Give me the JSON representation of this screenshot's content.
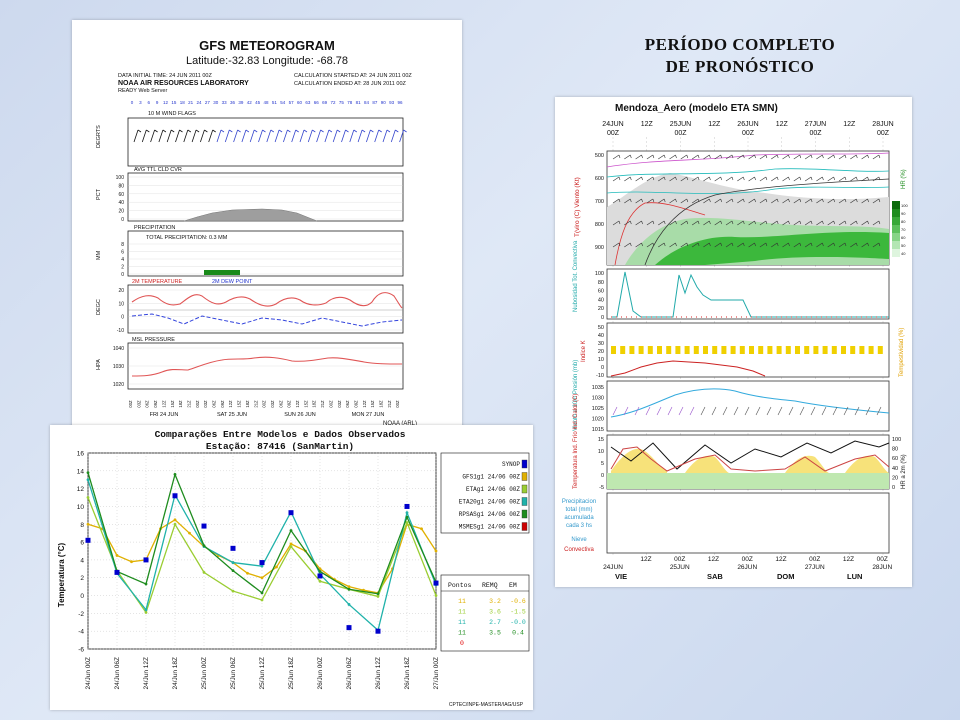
{
  "heading": {
    "line1": "PERÍODO COMPLETO",
    "line2": "DE PRONÓSTICO"
  },
  "gfs": {
    "title": "GFS METEOROGRAM",
    "latlon": "Latitude:-32.83 Longitude: -68.78",
    "initial": "DATA INITIAL TIME: 24 JUN 2011 00Z",
    "lab": "NOAA AIR RESOURCES LABORATORY",
    "server": "READY Web Server",
    "calc_start": "CALCULATION STARTED AT: 24 JUN 2011 00Z",
    "calc_end": "CALCULATION ENDED AT: 28 JUN 2011 00Z",
    "hours": [
      "0",
      "3",
      "6",
      "9",
      "12",
      "15",
      "18",
      "21",
      "24",
      "27",
      "30",
      "33",
      "36",
      "39",
      "42",
      "45",
      "48",
      "51",
      "54",
      "57",
      "60",
      "63",
      "66",
      "69",
      "72",
      "75",
      "78",
      "81",
      "84",
      "87",
      "90",
      "93",
      "96"
    ],
    "wind_label": "10 M WIND FLAGS",
    "wind_unit": "DEGRTS",
    "cloud_label": "AVG TTL CLD CVR",
    "cloud_unit": "PCT",
    "precip_label": "PRECIPITATION",
    "precip_total": "TOTAL PRECIPITATION:  0.3 MM",
    "precip_unit": "MM",
    "temp_label": "2M TEMPERATURE",
    "dew_label": "2M DEW POINT",
    "temp_unit": "DEGC",
    "mslp_label": "MSL PRESSURE",
    "mslp_unit": "HPA",
    "days": [
      "FRI 24 JUN",
      "SAT 25 JUN",
      "SUN 26 JUN",
      "MON 27 JUN"
    ],
    "footer": "NOAA (ARL)",
    "cloud_ticks": [
      "100",
      "80",
      "60",
      "40",
      "20",
      "0"
    ],
    "precip_ticks": [
      "8",
      "6",
      "4",
      "2",
      "0"
    ],
    "temp_ticks": [
      "20",
      "10",
      "0",
      "-10"
    ],
    "mslp_ticks": [
      "1040",
      "1030",
      "1020"
    ],
    "time_ticks": [
      "00Z",
      "03Z",
      "06Z",
      "09Z",
      "12Z",
      "15Z",
      "18Z",
      "21Z"
    ]
  },
  "eta": {
    "title": "Mendoza_Aero (modelo ETA SMN)",
    "top_dates": [
      [
        "24JUN",
        "00Z"
      ],
      [
        "12Z",
        ""
      ],
      [
        "25JUN",
        "00Z"
      ],
      [
        "12Z",
        ""
      ],
      [
        "26JUN",
        "00Z"
      ],
      [
        "12Z",
        ""
      ],
      [
        "27JUN",
        "00Z"
      ],
      [
        "12Z",
        ""
      ],
      [
        "28JUN",
        "00Z"
      ]
    ],
    "bottom_dates": [
      [
        "12Z",
        ""
      ],
      [
        "00Z",
        "25JUN"
      ],
      [
        "12Z",
        ""
      ],
      [
        "00Z",
        "26JUN"
      ],
      [
        "12Z",
        ""
      ],
      [
        "00Z",
        "27JUN"
      ],
      [
        "12Z",
        ""
      ],
      [
        "00Z",
        "28JUN"
      ]
    ],
    "bottom_start": "24JUN",
    "days": [
      "VIE",
      "SAB",
      "DOM",
      "LUN"
    ],
    "p1_label": "T(viro (C) Viento (Kt)",
    "p1_ticks": [
      "500",
      "600",
      "700",
      "800",
      "900"
    ],
    "hr_label": "HR (%)",
    "hr_ticks": [
      "100",
      "90",
      "80",
      "70",
      "60",
      "50",
      "40"
    ],
    "p2_label": "Nubosidad Tot. Convectiva",
    "p2_ticks": [
      "100",
      "80",
      "60",
      "40",
      "20",
      "0"
    ],
    "p3_label": "Indice K",
    "p3_right": "Tempestividad (%)",
    "p3_ticks": [
      "50",
      "40",
      "30",
      "20",
      "10",
      "0",
      "-10"
    ],
    "p4_label": "Viento a 10m Presión (mb)",
    "p4_ticks": [
      "1035",
      "1030",
      "1025",
      "1020",
      "1015"
    ],
    "p5_label": "Temperatura Ind. Frío Ind. Calor (C)",
    "p5_right": "HR a 2m (%)",
    "p5_ticks": [
      "15",
      "10",
      "5",
      "0",
      "-5"
    ],
    "p5_right_ticks": [
      "100",
      "80",
      "60",
      "40",
      "20",
      "0"
    ],
    "legend": [
      "Precipitacion",
      "total (mm)",
      "acumulada",
      "cada 3 hs"
    ],
    "legend_nieve": "Nieve",
    "legend_conv": "Convectiva",
    "contour_labels": [
      "30",
      "20",
      "10",
      "-10",
      "-15",
      "-5",
      "-20",
      "15"
    ]
  },
  "comparison": {
    "title": "Comparações Entre Modelos e Dados Observados",
    "station": "Estação: 87416 (SanMartin)",
    "ylabel": "Temperatura (°C)",
    "credit": "CPTEC/INPE-MASTER/IAG/USP",
    "table_headers": [
      "Pontos",
      "REMQ",
      "EM"
    ],
    "table_rows": [
      {
        "pontos": "11",
        "remq": "3.2",
        "em": "-0.6",
        "color": "#e0b000"
      },
      {
        "pontos": "11",
        "remq": "3.6",
        "em": "-1.5",
        "color": "#9acd32"
      },
      {
        "pontos": "11",
        "remq": "2.7",
        "em": "-0.0",
        "color": "#20b2aa"
      },
      {
        "pontos": "11",
        "remq": "3.5",
        "em": "0.4",
        "color": "#1e8c1e"
      },
      {
        "pontos": "0",
        "remq": "",
        "em": "",
        "color": "#e00000"
      }
    ]
  },
  "chart_data": {
    "type": "line",
    "title": "Comparações Entre Modelos e Dados Observados",
    "subtitle": "Estação: 87416 (SanMartin)",
    "xlabel": "",
    "ylabel": "Temperatura (°C)",
    "ylim": [
      -6,
      16
    ],
    "yticks": [
      -6,
      -4,
      -2,
      0,
      2,
      4,
      6,
      8,
      10,
      12,
      14,
      16
    ],
    "grid": true,
    "legend_position": "right",
    "categories": [
      "24/Jun 00Z",
      "24/Jun 06Z",
      "24/Jun 12Z",
      "24/Jun 18Z",
      "25/Jun 00Z",
      "25/Jun 06Z",
      "25/Jun 12Z",
      "25/Jun 18Z",
      "26/Jun 00Z",
      "26/Jun 06Z",
      "26/Jun 12Z",
      "26/Jun 18Z",
      "27/Jun 00Z"
    ],
    "x_positions": [
      0,
      3,
      6,
      9,
      12,
      15,
      18,
      21,
      24,
      27,
      30,
      33,
      36
    ],
    "series": [
      {
        "name": "SYNOP",
        "color": "#0000cc",
        "kind": "marker",
        "points": [
          [
            0,
            6.2
          ],
          [
            3,
            2.6
          ],
          [
            6,
            4.0
          ],
          [
            9,
            11.2
          ],
          [
            12,
            7.8
          ],
          [
            15,
            5.3
          ],
          [
            18,
            3.7
          ],
          [
            21,
            9.3
          ],
          [
            24,
            2.2
          ],
          [
            27,
            -3.6
          ],
          [
            30,
            -4.0
          ],
          [
            33,
            10.0
          ],
          [
            36,
            1.4
          ]
        ]
      },
      {
        "name": "GFS1g1 24/06 00Z",
        "color": "#e0b000",
        "kind": "line",
        "points": [
          [
            0,
            8.0
          ],
          [
            1.5,
            7.5
          ],
          [
            3,
            4.5
          ],
          [
            4.5,
            3.8
          ],
          [
            6,
            4.0
          ],
          [
            7.5,
            7.5
          ],
          [
            9,
            8.5
          ],
          [
            10.5,
            7.0
          ],
          [
            12,
            5.5
          ],
          [
            13.5,
            4.5
          ],
          [
            15,
            3.7
          ],
          [
            16.5,
            2.5
          ],
          [
            18,
            2.0
          ],
          [
            19.5,
            3.2
          ],
          [
            21,
            5.8
          ],
          [
            22.5,
            5.0
          ],
          [
            24,
            3.0
          ],
          [
            25.5,
            1.8
          ],
          [
            27,
            1.0
          ],
          [
            28.5,
            0.6
          ],
          [
            30,
            0.3
          ],
          [
            31.5,
            3.0
          ],
          [
            33,
            8.0
          ],
          [
            34.5,
            7.5
          ],
          [
            36,
            5.0
          ]
        ]
      },
      {
        "name": "ETAg1 24/06 00Z",
        "color": "#9acd32",
        "kind": "line",
        "points": [
          [
            0,
            11.0
          ],
          [
            3,
            2.8
          ],
          [
            6,
            -1.9
          ],
          [
            9,
            8.0
          ],
          [
            12,
            2.6
          ],
          [
            15,
            0.5
          ],
          [
            18,
            -0.5
          ],
          [
            21,
            5.5
          ],
          [
            24,
            1.6
          ],
          [
            27,
            0.7
          ],
          [
            30,
            -0.1
          ],
          [
            33,
            8.2
          ],
          [
            36,
            0.0
          ]
        ]
      },
      {
        "name": "ETA20g1 24/06 00Z",
        "color": "#20b2aa",
        "kind": "line",
        "points": [
          [
            0,
            13.0
          ],
          [
            3,
            2.5
          ],
          [
            6,
            -1.6
          ],
          [
            9,
            11.3
          ],
          [
            12,
            5.5
          ],
          [
            15,
            3.7
          ],
          [
            18,
            3.3
          ],
          [
            21,
            9.4
          ],
          [
            24,
            2.4
          ],
          [
            27,
            -1.0
          ],
          [
            30,
            -3.9
          ],
          [
            33,
            9.3
          ],
          [
            36,
            1.2
          ]
        ]
      },
      {
        "name": "RPSASg1 24/06 00Z",
        "color": "#1e8c1e",
        "kind": "line",
        "points": [
          [
            0,
            13.8
          ],
          [
            3,
            2.7
          ],
          [
            6,
            1.3
          ],
          [
            9,
            13.6
          ],
          [
            12,
            5.6
          ],
          [
            15,
            2.8
          ],
          [
            18,
            0.3
          ],
          [
            21,
            7.3
          ],
          [
            24,
            2.7
          ],
          [
            27,
            0.7
          ],
          [
            30,
            0.2
          ],
          [
            33,
            8.8
          ],
          [
            36,
            1.5
          ]
        ]
      },
      {
        "name": "MSMESg1 24/06 00Z",
        "color": "#cc0000",
        "kind": "line",
        "points": []
      }
    ]
  }
}
